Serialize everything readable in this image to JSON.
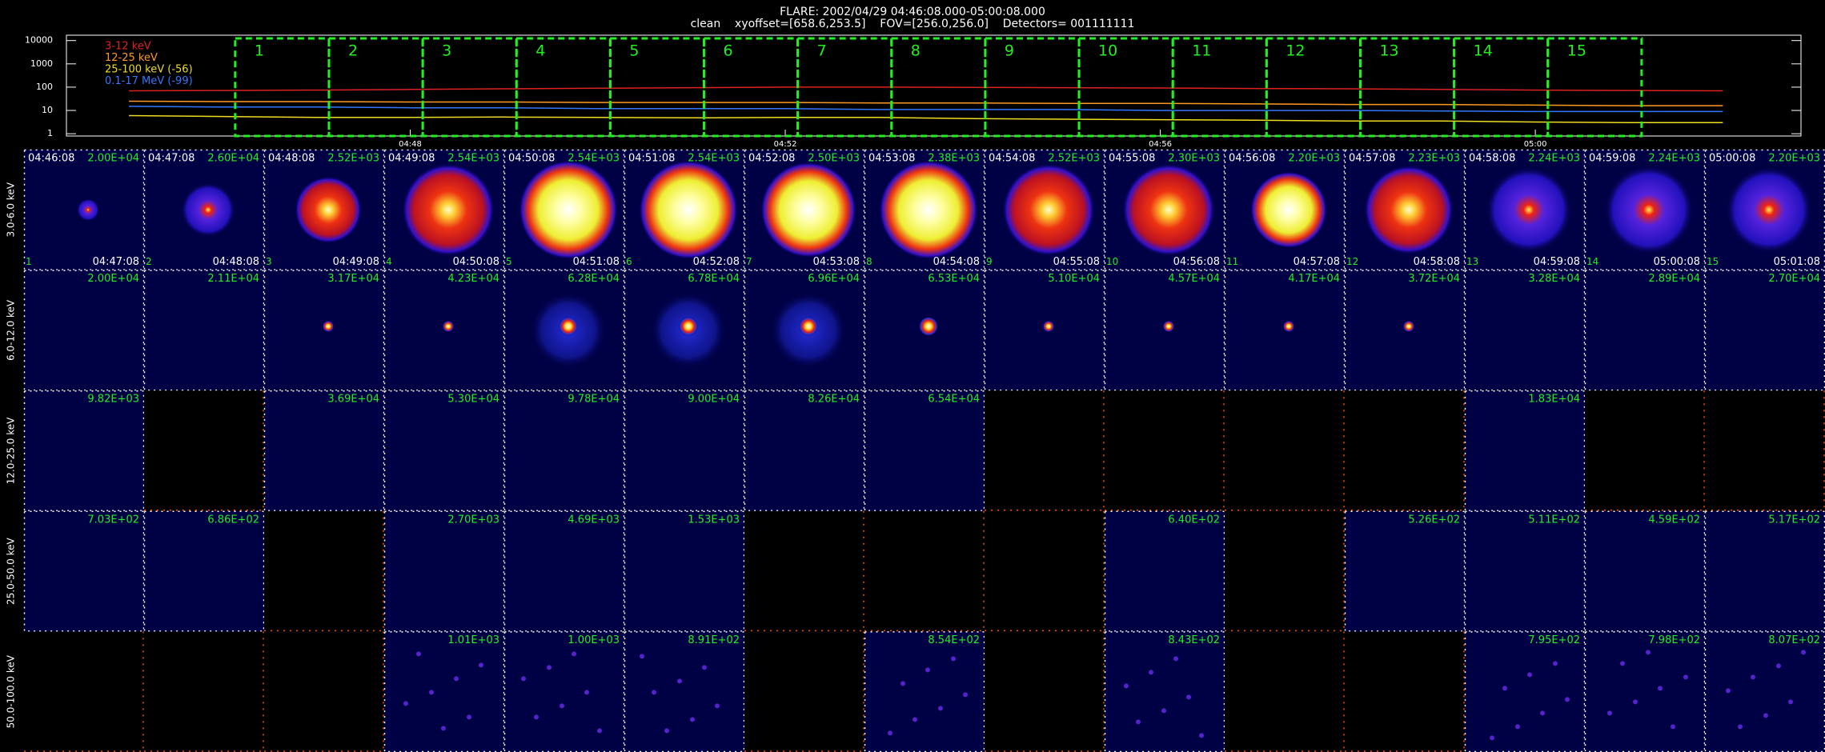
{
  "header": {
    "title": "FLARE: 2002/04/29 04:46:08.000-05:00:08.000",
    "subtitle": "clean    xyoffset=[658.6,253.5]    FOV=[256.0,256.0]    Detectors= 001111111"
  },
  "lightcurve": {
    "type": "line",
    "log_scale": true,
    "x": [
      "04:45:00",
      "04:46:00",
      "04:47:00",
      "04:48:00",
      "04:49:00",
      "04:50:00",
      "04:51:00",
      "04:52:00",
      "04:53:00",
      "04:54:00",
      "04:55:00",
      "04:56:00",
      "04:57:00",
      "04:58:00",
      "04:59:00",
      "05:00:00",
      "05:01:00",
      "05:02:00"
    ],
    "xlim": [
      "04:44:20",
      "05:02:50"
    ],
    "xticks": [
      "04:48",
      "04:52",
      "04:56",
      "05:00"
    ],
    "ylim": [
      0.8,
      17000
    ],
    "yticks": [
      1,
      10,
      100,
      1000,
      10000
    ],
    "series": [
      {
        "name": "3-12 keV",
        "color": "#dd2222",
        "values": [
          70,
          72,
          75,
          80,
          85,
          90,
          95,
          100,
          100,
          98,
          95,
          92,
          88,
          85,
          80,
          75,
          72,
          70
        ]
      },
      {
        "name": "12-25 keV",
        "color": "#ff9922",
        "values": [
          25,
          24,
          24,
          23,
          23,
          22,
          22,
          22,
          21,
          21,
          20,
          20,
          19,
          18,
          18,
          17,
          16,
          16
        ]
      },
      {
        "name": "25-100 keV (-56)",
        "color": "#eedd22",
        "values": [
          6,
          5.5,
          5,
          5,
          5.2,
          5,
          4.8,
          5,
          5,
          4.5,
          4.2,
          4,
          3.8,
          3.5,
          3.5,
          3.2,
          3,
          3
        ]
      },
      {
        "name": "0.1-17 MeV (-99)",
        "color": "#3377ff",
        "values": [
          15,
          14,
          14,
          13,
          13,
          12,
          12,
          12,
          11,
          11,
          11,
          10,
          10,
          10,
          9.5,
          9,
          9,
          9
        ]
      }
    ],
    "intervals": [
      1,
      2,
      3,
      4,
      5,
      6,
      7,
      8,
      9,
      10,
      11,
      12,
      13,
      14,
      15
    ]
  },
  "grid": {
    "row_labels": [
      "3.0-6.0 keV",
      "6.0-12.0 keV",
      "12.0-25.0 keV",
      "25.0-50.0 keV",
      "50.0-100.0 keV"
    ],
    "start_times": [
      "04:46:08",
      "04:47:08",
      "04:48:08",
      "04:49:08",
      "04:50:08",
      "04:51:08",
      "04:52:08",
      "04:53:08",
      "04:54:08",
      "04:55:08",
      "04:56:08",
      "04:57:08",
      "04:58:08",
      "04:59:08",
      "05:00:08"
    ],
    "end_times": [
      "04:47:08",
      "04:48:08",
      "04:49:08",
      "04:50:08",
      "04:51:08",
      "04:52:08",
      "04:53:08",
      "04:54:08",
      "04:55:08",
      "04:56:08",
      "04:57:08",
      "04:58:08",
      "04:59:08",
      "05:00:08",
      "05:01:08"
    ],
    "max_labels": [
      [
        "2.00E+04",
        "2.60E+04",
        "2.52E+03",
        "2.54E+03",
        "2.54E+03",
        "2.54E+03",
        "2.50E+03",
        "2.38E+03",
        "2.52E+03",
        "2.30E+03",
        "2.20E+03",
        "2.23E+03",
        "2.24E+03",
        "2.24E+03",
        "2.20E+03"
      ],
      [
        "2.00E+04",
        "2.11E+04",
        "3.17E+04",
        "4.23E+04",
        "6.28E+04",
        "6.78E+04",
        "6.96E+04",
        "6.53E+04",
        "5.10E+04",
        "4.57E+04",
        "4.17E+04",
        "3.72E+04",
        "3.28E+04",
        "2.89E+04",
        "2.70E+04"
      ],
      [
        "9.82E+03",
        null,
        "3.69E+04",
        "5.30E+04",
        "9.78E+04",
        "9.00E+04",
        "8.26E+04",
        "6.54E+04",
        null,
        null,
        null,
        null,
        "1.83E+04",
        null,
        null
      ],
      [
        "7.03E+02",
        "6.86E+02",
        null,
        "2.70E+03",
        "4.69E+03",
        "1.53E+03",
        null,
        null,
        null,
        "6.40E+02",
        null,
        "5.26E+02",
        "5.11E+02",
        "4.59E+02",
        "5.17E+02"
      ],
      [
        null,
        null,
        null,
        "1.01E+03",
        "1.00E+03",
        "8.91E+02",
        null,
        "8.54E+02",
        null,
        "8.43E+02",
        null,
        null,
        "7.95E+02",
        "7.98E+02",
        "8.07E+02"
      ]
    ]
  }
}
